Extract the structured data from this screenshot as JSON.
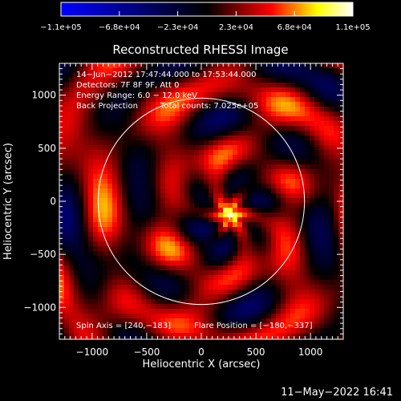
{
  "chart_data": {
    "type": "heatmap",
    "title": "Reconstructed RHESSI Image",
    "xlabel": "Heliocentric X (arcsec)",
    "ylabel": "Heliocentric Y (arcsec)",
    "xlim": [
      -1300,
      1300
    ],
    "ylim": [
      -1300,
      1300
    ],
    "xticks": [
      -1000,
      -500,
      0,
      500,
      1000
    ],
    "yticks": [
      -1000,
      -500,
      0,
      500,
      1000
    ],
    "xtick_labels": [
      "−1000",
      "−500",
      "0",
      "500",
      "1000"
    ],
    "ytick_labels": [
      "−1000",
      "−500",
      "0",
      "500",
      "1000"
    ],
    "colorbar": {
      "min": -110000,
      "max": 110000,
      "tick_labels": [
        "−1.1e+05",
        "−6.8e+04",
        "−2.3e+04",
        "2.3e+04",
        "6.8e+04",
        "1.1e+05"
      ],
      "colormap": [
        "#0000ff",
        "#000000",
        "#ff0000",
        "#ffff00",
        "#ffffff"
      ]
    },
    "annotations": {
      "time_range": "14−Jun−2012 17:47:44.000 to 17:53:44.000",
      "detectors": "Detectors: 7F 8F 9F, Att 0",
      "energy_range": "Energy Range: 6.0 − 12.0 keV",
      "method": "Back Projection",
      "total_counts": "Total counts: 7.025e+05",
      "spin_axis": "Spin Axis = [240,−183]",
      "flare_position": "Flare Position = [−180,−337]"
    },
    "solar_disk_radius": 945,
    "marker_position": [
      260,
      -130
    ],
    "grid": false
  },
  "footer": {
    "date_stamp": "11−May−2022 16:41"
  }
}
